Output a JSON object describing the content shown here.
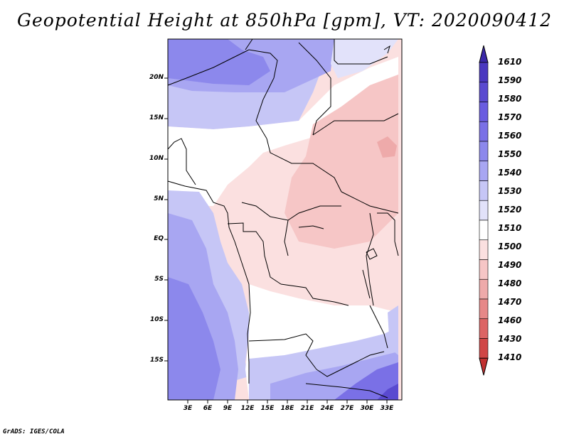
{
  "title": "Geopotential Height at 850hPa [gpm], VT: 2020090412",
  "credit": "GrADS: IGES/COLA",
  "map": {
    "lat_labels": [
      "20N",
      "15N",
      "10N",
      "5N",
      "EQ",
      "5S",
      "10S",
      "15S"
    ],
    "lon_labels": [
      "3E",
      "6E",
      "9E",
      "12E",
      "15E",
      "18E",
      "21E",
      "24E",
      "27E",
      "30E",
      "33E"
    ]
  },
  "colorbar": {
    "levels": [
      "1610",
      "1590",
      "1580",
      "1570",
      "1560",
      "1550",
      "1540",
      "1530",
      "1520",
      "1510",
      "1500",
      "1490",
      "1480",
      "1470",
      "1460",
      "1430",
      "1410"
    ],
    "colors": [
      "#3a28a8",
      "#4a38c0",
      "#5a4ad0",
      "#6a5ce0",
      "#7a70e6",
      "#8c88ec",
      "#a8a6f2",
      "#c6c6f6",
      "#e2e2fa",
      "#ffffff",
      "#fbe0e0",
      "#f6c6c6",
      "#eeaaaa",
      "#e68888",
      "#dc6464",
      "#d04646",
      "#c03030"
    ]
  }
}
